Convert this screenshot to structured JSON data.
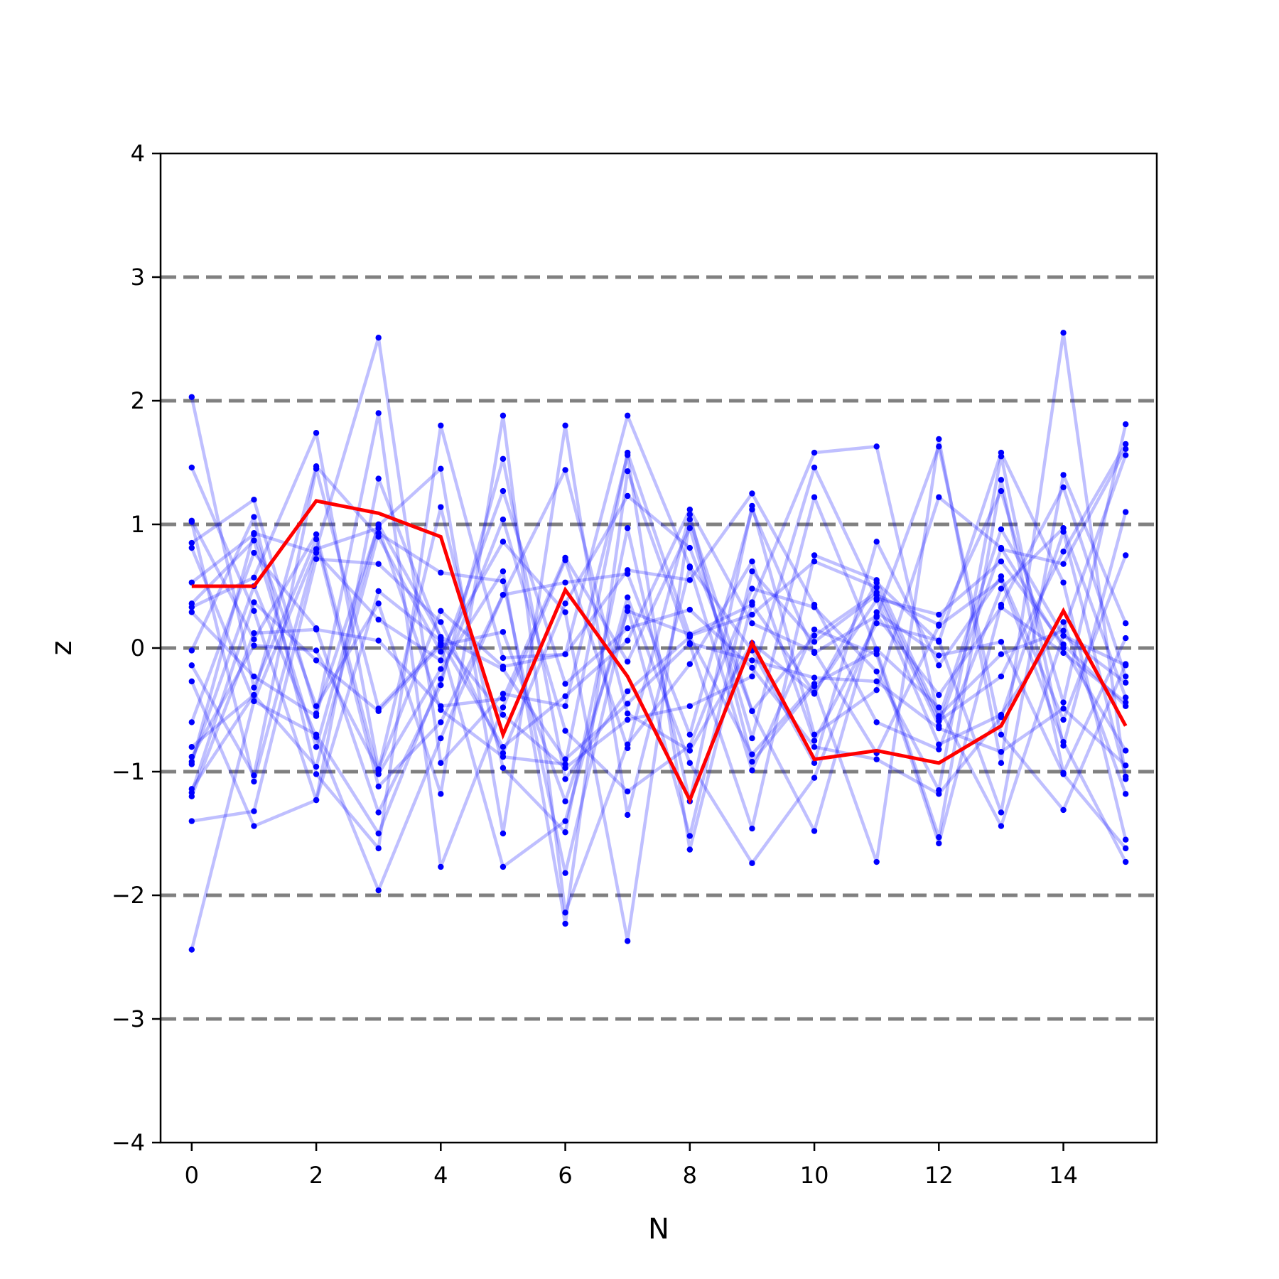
{
  "chart_data": {
    "type": "line",
    "title": "",
    "xlabel": "N",
    "ylabel": "z",
    "xlim": [
      -0.5,
      15.5
    ],
    "ylim": [
      -4,
      4
    ],
    "x": [
      0,
      1,
      2,
      3,
      4,
      5,
      6,
      7,
      8,
      9,
      10,
      11,
      12,
      13,
      14,
      15
    ],
    "xticks": [
      0,
      2,
      4,
      6,
      8,
      10,
      12,
      14
    ],
    "xtick_labels": [
      "0",
      "2",
      "4",
      "6",
      "8",
      "10",
      "12",
      "14"
    ],
    "yticks": [
      -4,
      -3,
      -2,
      -1,
      0,
      1,
      2,
      3,
      4
    ],
    "ytick_labels": [
      "−4",
      "−3",
      "−2",
      "−1",
      "0",
      "1",
      "2",
      "3",
      "4"
    ],
    "reference_lines": [
      -3,
      -2,
      -1,
      0,
      1,
      2,
      3
    ],
    "reference_line_color": "#808080",
    "sample_color": "#0000ff",
    "highlight_color": "#ff0000",
    "grid": false,
    "legend": "none",
    "highlight_series": {
      "values": [
        0.5,
        0.5,
        1.19,
        1.09,
        0.9,
        -0.7,
        0.47,
        -0.23,
        -1.23,
        0.04,
        -0.9,
        -0.83,
        -0.93,
        -0.63,
        0.3,
        -0.63
      ]
    },
    "series": [
      {
        "values": [
          2.03,
          -0.32,
          0.88,
          -1.12,
          -0.6,
          0.43,
          1.44,
          -0.53,
          -0.83,
          0.04,
          -0.37,
          0.53,
          0.05,
          1.58,
          0.53,
          -1.55
        ]
      },
      {
        "values": [
          1.46,
          0.3,
          -1.23,
          0.46,
          0.06,
          -0.8,
          -0.39,
          0.06,
          1.12,
          0.2,
          -0.03,
          -0.85,
          0.18,
          0.55,
          -0.76,
          -1.73
        ]
      },
      {
        "values": [
          1.03,
          0.07,
          0.92,
          -1.02,
          -0.17,
          0.62,
          -2.23,
          1.43,
          0.03,
          -1.46,
          0.75,
          0.55,
          -0.55,
          -0.05,
          0.14,
          1.56
        ]
      },
      {
        "values": [
          0.85,
          1.2,
          -0.53,
          0.99,
          1.45,
          -1.5,
          1.8,
          -1.35,
          0.65,
          -0.99,
          0.15,
          -0.05,
          -1.58,
          0.35,
          1.3,
          -0.23
        ]
      },
      {
        "values": [
          0.81,
          -0.43,
          0.8,
          2.51,
          -0.93,
          -0.37,
          -0.47,
          1.56,
          -1.63,
          0.37,
          1.58,
          1.63,
          -0.57,
          0.96,
          0.1,
          -0.14
        ]
      },
      {
        "values": [
          0.53,
          0.92,
          -0.47,
          0.36,
          -1.18,
          1.88,
          -2.14,
          -0.78,
          -0.13,
          0.7,
          -0.75,
          0.2,
          0.06,
          -1.33,
          1.4,
          0.2
        ]
      },
      {
        "values": [
          0.33,
          0.57,
          1.74,
          -0.98,
          0.3,
          -0.15,
          -0.05,
          1.88,
          0.66,
          -0.02,
          -0.93,
          0.86,
          -0.14,
          0.58,
          -0.58,
          0.75
        ]
      },
      {
        "values": [
          0.29,
          -0.23,
          -0.55,
          1.9,
          -1.77,
          -0.48,
          0.71,
          -0.81,
          1.08,
          -0.92,
          -0.31,
          -1.73,
          1.69,
          -0.93,
          2.55,
          -1.06
        ]
      },
      {
        "values": [
          -0.02,
          1.06,
          -1.02,
          -1.62,
          1.8,
          -0.08,
          -0.05,
          0.63,
          0.55,
          1.25,
          0.35,
          -0.6,
          -0.82,
          0.48,
          0.97,
          -0.4
        ]
      },
      {
        "values": [
          -0.14,
          -1.03,
          1.45,
          -0.49,
          0.04,
          -1.77,
          -1.4,
          0.41,
          -0.93,
          -1.74,
          -1.05,
          0.25,
          1.63,
          -0.7,
          -1.31,
          -0.13
        ]
      },
      {
        "values": [
          -0.27,
          -1.44,
          -1.23,
          1.37,
          0.08,
          -0.54,
          -0.97,
          -0.58,
          -0.47,
          -0.23,
          1.46,
          0.4,
          0.27,
          0.7,
          0.03,
          -0.47
        ]
      },
      {
        "values": [
          -0.6,
          0.77,
          0.16,
          -1.33,
          -0.3,
          1.53,
          -1.06,
          -0.35,
          0.09,
          -0.86,
          -0.29,
          -0.02,
          -1.53,
          1.36,
          -1.01,
          0.08
        ]
      },
      {
        "values": [
          -0.8,
          -0.38,
          1.47,
          0.9,
          -0.03,
          0.86,
          0.29,
          -2.37,
          1.04,
          -0.51,
          0.1,
          0.45,
          -0.63,
          0.8,
          0.68,
          1.61
        ]
      },
      {
        "values": [
          -0.88,
          0.02,
          -0.02,
          -0.99,
          1.14,
          -0.97,
          -1.49,
          0.97,
          -1.24,
          1.15,
          -0.7,
          -0.34,
          1.22,
          0.81,
          0.0,
          -0.83
        ]
      },
      {
        "values": [
          -0.94,
          0.93,
          0.77,
          0.23,
          -0.1,
          1.27,
          -0.29,
          0.16,
          0.31,
          -0.16,
          -0.8,
          -0.9,
          -1.18,
          -0.56,
          0.94,
          -1.04
        ]
      },
      {
        "values": [
          -1.14,
          -0.38,
          -0.96,
          0.93,
          0.61,
          0.54,
          -1.82,
          0.33,
          -1.52,
          0.62,
          0.05,
          0.43,
          0.19,
          1.27,
          -0.44,
          1.81
        ]
      },
      {
        "values": [
          -1.2,
          0.12,
          0.15,
          0.06,
          -0.47,
          -0.41,
          0.73,
          -0.11,
          0.97,
          -0.73,
          1.22,
          -0.01,
          -0.48,
          -1.44,
          0.1,
          -0.28
        ]
      },
      {
        "values": [
          -1.4,
          -1.32,
          0.72,
          0.68,
          0.21,
          -0.85,
          0.36,
          1.23,
          0.81,
          -0.51,
          -1.48,
          0.29,
          -0.06,
          0.05,
          -1.02,
          -1.62
        ]
      },
      {
        "values": [
          -2.44,
          -0.43,
          -0.7,
          -1.5,
          -0.25,
          1.04,
          -0.67,
          -1.16,
          -0.79,
          0.48,
          0.33,
          -0.19,
          -1.15,
          1.55,
          -0.79,
          1.1
        ]
      },
      {
        "values": [
          -1.17,
          0.37,
          -0.1,
          -0.51,
          0.02,
          0.13,
          -1.24,
          0.3,
          0.11,
          0.35,
          -0.36,
          0.39,
          -0.78,
          -0.54,
          0.21,
          -1.18
        ]
      },
      {
        "values": [
          -0.92,
          0.5,
          -0.72,
          -1.96,
          -0.73,
          0.43,
          0.53,
          0.6,
          -0.7,
          1.12,
          -0.04,
          0.26,
          -0.38,
          0.33,
          -0.04,
          -0.44
        ]
      },
      {
        "values": [
          1.02,
          -1.08,
          0.8,
          0.97,
          -0.5,
          -0.88,
          -0.94,
          1.58,
          0.1,
          0.27,
          0.7,
          0.49,
          -0.59,
          -0.23,
          0.78,
          1.65
        ]
      },
      {
        "values": [
          0.36,
          0.87,
          -0.8,
          1.0,
          0.09,
          -0.17,
          -0.9,
          -0.45,
          0.04,
          -0.1,
          -0.24,
          -0.27,
          -0.65,
          -0.84,
          -0.49,
          -0.95
        ]
      }
    ]
  }
}
